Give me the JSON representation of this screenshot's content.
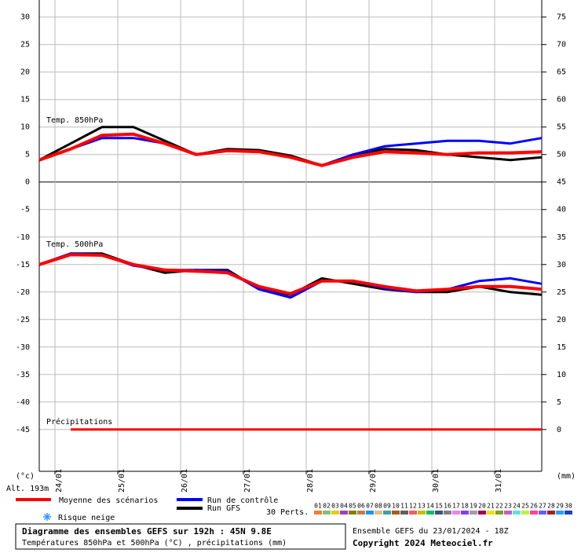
{
  "chart_data": {
    "type": "line",
    "x": [
      0,
      12,
      24,
      36,
      48,
      60,
      72,
      84,
      96,
      108,
      120,
      132,
      144,
      156,
      168,
      180,
      192
    ],
    "xlim": [
      0,
      192
    ],
    "xticks": [
      {
        "value": 6,
        "label": "24/01"
      },
      {
        "value": 30,
        "label": "25/01"
      },
      {
        "value": 54,
        "label": "26/01"
      },
      {
        "value": 78,
        "label": "27/01"
      },
      {
        "value": 102,
        "label": "28/01"
      },
      {
        "value": 126,
        "label": "29/01"
      },
      {
        "value": 150,
        "label": "30/01"
      },
      {
        "value": 174,
        "label": "31/01"
      }
    ],
    "ylim": [
      -52.6,
      33.1
    ],
    "yticks": [
      -45,
      -40,
      -35,
      -30,
      -25,
      -20,
      -15,
      -10,
      -5,
      0,
      5,
      10,
      15,
      20,
      25,
      30
    ],
    "y2lim": [
      -7.6,
      78.1
    ],
    "y2ticks": [
      0,
      5,
      10,
      15,
      20,
      25,
      30,
      35,
      40,
      45,
      50,
      55,
      60,
      65,
      70,
      75
    ],
    "ylabel": "(°c)",
    "y2label": "(mm)",
    "altitude": "Alt. 193m",
    "grid": true,
    "annotations": [
      "Temp. 850hPa",
      "Temp. 500hPa",
      "Précipitations"
    ],
    "series": [
      {
        "name": "Moyenne des scénarios",
        "color": "#ff0000",
        "t850": [
          4,
          6,
          8.5,
          8.7,
          7,
          5,
          5.7,
          5.5,
          4.5,
          3,
          4.5,
          5.5,
          5.3,
          5,
          5.3,
          5.3,
          5.5
        ],
        "t500": [
          -15,
          -13.2,
          -13.3,
          -15,
          -16,
          -16.2,
          -16.5,
          -19,
          -20.3,
          -18,
          -18,
          -19,
          -19.8,
          -19.5,
          -19,
          -19,
          -19.5
        ],
        "precip": [
          null,
          0,
          0,
          0,
          0,
          0,
          0,
          0,
          0,
          0,
          0,
          0,
          0,
          0,
          0,
          0,
          0
        ]
      },
      {
        "name": "Run de contrôle",
        "color": "#0000ff",
        "t850": [
          4,
          6,
          8,
          8,
          7,
          5,
          5.8,
          5.5,
          4.5,
          3,
          5,
          6.5,
          7,
          7.5,
          7.5,
          7,
          8
        ],
        "t500": [
          -15,
          -13,
          -13.2,
          -15.2,
          -16,
          -16,
          -16.2,
          -19.5,
          -21,
          -18,
          -18,
          -19.3,
          -20,
          -19.5,
          -18,
          -17.5,
          -18.5
        ]
      },
      {
        "name": "Run GFS",
        "color": "#000000",
        "t850": [
          4,
          7,
          10,
          10,
          7.5,
          5,
          6,
          5.8,
          4.8,
          3,
          5,
          6,
          5.8,
          5,
          4.5,
          4,
          4.5
        ],
        "t500": [
          -15,
          -13,
          -13,
          -15,
          -16.5,
          -16,
          -16,
          -19.5,
          -20.5,
          -17.5,
          -18.5,
          -19.5,
          -20,
          -20,
          -19,
          -20,
          -20.5
        ]
      }
    ],
    "snow_label": "Risque neige",
    "perturbations_label": "30 Perts.",
    "perturbations": [
      {
        "name": "01",
        "color": "#f08030"
      },
      {
        "name": "02",
        "color": "#80c080"
      },
      {
        "name": "03",
        "color": "#e0d000"
      },
      {
        "name": "04",
        "color": "#a040c0"
      },
      {
        "name": "05",
        "color": "#808000"
      },
      {
        "name": "06",
        "color": "#c08040"
      },
      {
        "name": "07",
        "color": "#2090f0"
      },
      {
        "name": "08",
        "color": "#e0c080"
      },
      {
        "name": "09",
        "color": "#40a0a0"
      },
      {
        "name": "10",
        "color": "#a06020"
      },
      {
        "name": "11",
        "color": "#606060"
      },
      {
        "name": "12",
        "color": "#f06060"
      },
      {
        "name": "13",
        "color": "#c0c000"
      },
      {
        "name": "14",
        "color": "#00c060"
      },
      {
        "name": "15",
        "color": "#405080"
      },
      {
        "name": "16",
        "color": "#808080"
      },
      {
        "name": "17",
        "color": "#f080f0"
      },
      {
        "name": "18",
        "color": "#8040f0"
      },
      {
        "name": "19",
        "color": "#a0a0a0"
      },
      {
        "name": "20",
        "color": "#a00060"
      },
      {
        "name": "21",
        "color": "#f0e000"
      },
      {
        "name": "22",
        "color": "#80a020"
      },
      {
        "name": "23",
        "color": "#c060c0"
      },
      {
        "name": "24",
        "color": "#60e0e0"
      },
      {
        "name": "25",
        "color": "#c0f040"
      },
      {
        "name": "26",
        "color": "#ff40a0"
      },
      {
        "name": "27",
        "color": "#6060ff"
      },
      {
        "name": "28",
        "color": "#a02020"
      },
      {
        "name": "29",
        "color": "#20a0ff"
      },
      {
        "name": "30",
        "color": "#2040c0"
      }
    ],
    "footer": {
      "title": "Diagramme des ensembles GEFS sur 192h : 45N 9.8E",
      "subtitle": "Températures 850hPa et 500hPa (°C) , précipitations (mm)",
      "run": "Ensemble GEFS du 23/01/2024 - 18Z",
      "copyright": "Copyright 2024 Meteociel.fr"
    }
  }
}
